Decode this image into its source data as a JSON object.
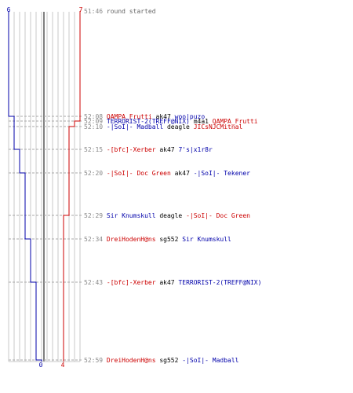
{
  "colors": {
    "team_a": "#0000aa",
    "team_b": "#cc0000",
    "grid": "#c8c8c8",
    "center": "#808080",
    "time": "#888888",
    "weapon": "#000000",
    "message": "#666666"
  },
  "team_a_start": "6",
  "team_b_start": "7",
  "team_a_end": "0",
  "team_b_end": "4",
  "events": [
    {
      "time": "51:46",
      "message": "round started",
      "killer": "",
      "killer_team": "",
      "weapon": "",
      "victim": "",
      "victim_team": "",
      "a_alive": 6,
      "b_alive": 7
    },
    {
      "time": "52:08",
      "killer": "QAMPA_Frutti",
      "killer_team": "b",
      "weapon": "ak47",
      "victim": "woo|puzo",
      "victim_team": "a",
      "a_alive": 5,
      "b_alive": 7
    },
    {
      "time": "52:09",
      "killer": "TERRORIST-2(TREFF@NIX)",
      "killer_team": "a",
      "weapon": "m4a1",
      "victim": "QAMPA_Frutti",
      "victim_team": "b",
      "a_alive": 5,
      "b_alive": 6
    },
    {
      "time": "52:10",
      "killer": "-|SoI|- Madball",
      "killer_team": "a",
      "weapon": "deagle",
      "victim": "JICsNJCMitnal",
      "victim_team": "b",
      "a_alive": 5,
      "b_alive": 5
    },
    {
      "time": "52:15",
      "killer": "-[bfc]-Xerber",
      "killer_team": "b",
      "weapon": "ak47",
      "victim": "7's|x1r8r",
      "victim_team": "a",
      "a_alive": 4,
      "b_alive": 5
    },
    {
      "time": "52:20",
      "killer": "-|SoI|- Doc Green",
      "killer_team": "b",
      "weapon": "ak47",
      "victim": "-|SoI|- Tekener",
      "victim_team": "a",
      "a_alive": 3,
      "b_alive": 5
    },
    {
      "time": "52:29",
      "killer": "Sir Knumskull",
      "killer_team": "a",
      "weapon": "deagle",
      "victim": "-|SoI|- Doc Green",
      "victim_team": "b",
      "a_alive": 3,
      "b_alive": 4
    },
    {
      "time": "52:34",
      "killer": "DreiHodenH@ns",
      "killer_team": "b",
      "weapon": "sg552",
      "victim": "Sir Knumskull",
      "victim_team": "a",
      "a_alive": 2,
      "b_alive": 4
    },
    {
      "time": "52:43",
      "killer": "-[bfc]-Xerber",
      "killer_team": "b",
      "weapon": "ak47",
      "victim": "TERRORIST-2(TREFF@NIX)",
      "victim_team": "a",
      "a_alive": 1,
      "b_alive": 4
    },
    {
      "time": "52:59",
      "killer": "DreiHodenH@ns",
      "killer_team": "b",
      "weapon": "sg552",
      "victim": "-|SoI|- Madball",
      "victim_team": "a",
      "a_alive": 0,
      "b_alive": 4
    }
  ]
}
